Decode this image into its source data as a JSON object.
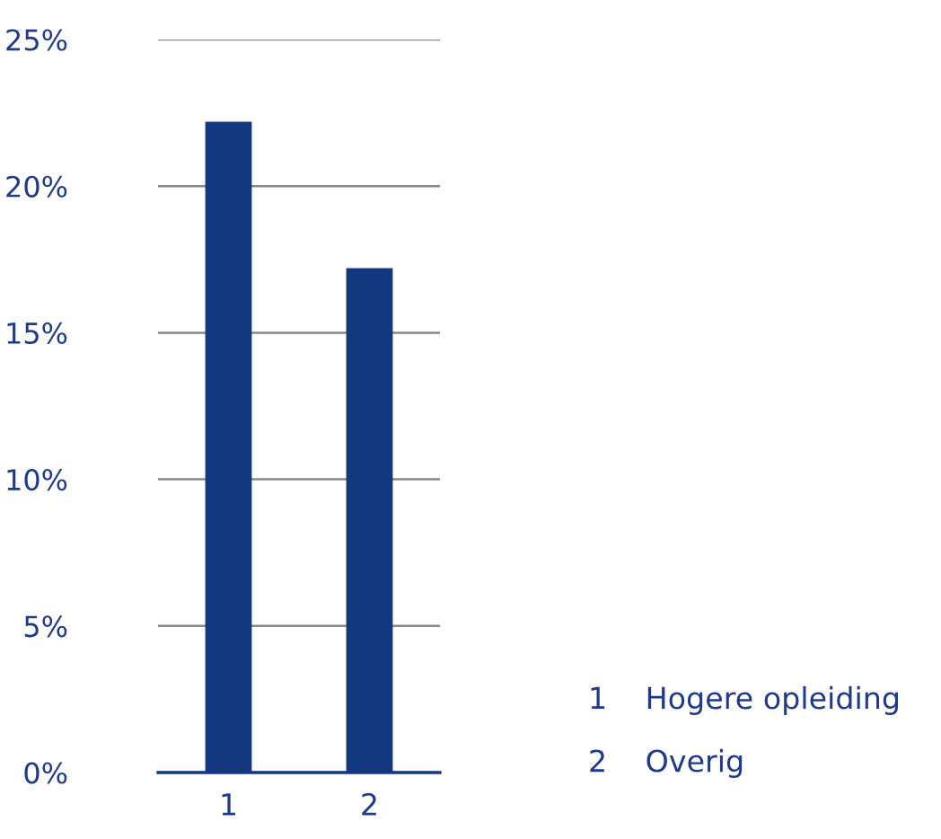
{
  "chart_data": {
    "type": "bar",
    "categories": [
      "1",
      "2"
    ],
    "values": [
      22.2,
      17.2
    ],
    "color": "#14387f",
    "ylim": [
      0,
      25
    ],
    "yticks": [
      {
        "value": 0,
        "label": "0%"
      },
      {
        "value": 5,
        "label": "5%"
      },
      {
        "value": 10,
        "label": "10%"
      },
      {
        "value": 15,
        "label": "15%"
      },
      {
        "value": 20,
        "label": "20%"
      },
      {
        "value": 25,
        "label": "25%"
      }
    ],
    "grid": "y",
    "annotations": [
      "1    Hogere opleiding",
      "2    Overig"
    ]
  }
}
